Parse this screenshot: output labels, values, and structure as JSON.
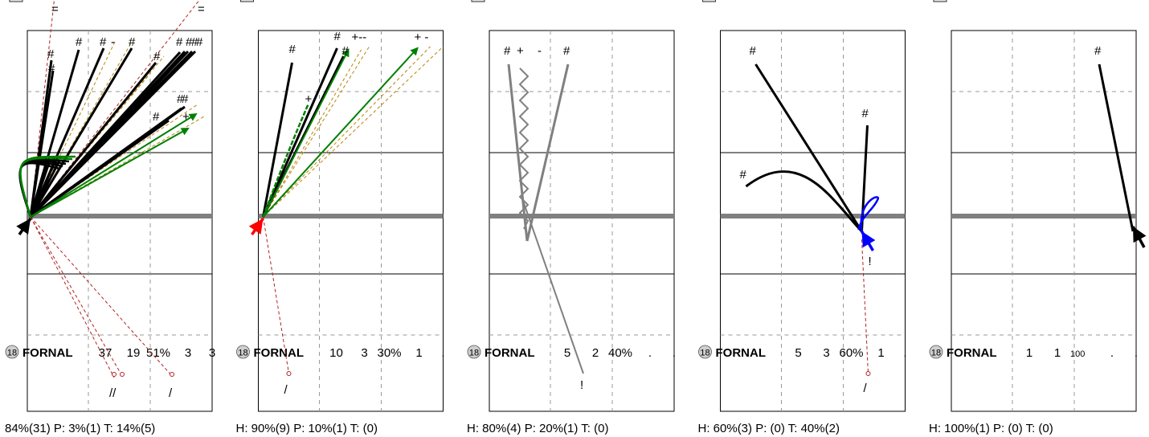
{
  "chart_data": [
    {
      "type": "other",
      "player": {
        "number": "18",
        "name": "FORNAL"
      },
      "stats": [
        "37",
        "19",
        "51%",
        "3",
        "3"
      ],
      "footer": "84%(31)  P: 3%(1)  T: 14%(5)",
      "colors": {
        "arrow": "#000000"
      }
    },
    {
      "type": "other",
      "player": {
        "number": "18",
        "name": "FORNAL"
      },
      "stats": [
        "10",
        "3",
        "30%",
        "1",
        "."
      ],
      "footer": "H: 90%(9)  P: 10%(1)  T: (0)",
      "colors": {
        "arrow": "#ff0000"
      }
    },
    {
      "type": "other",
      "player": {
        "number": "18",
        "name": "FORNAL"
      },
      "stats": [
        "5",
        "2",
        "40%",
        ".",
        "."
      ],
      "footer": "H: 80%(4)  P: 20%(1)  T: (0)",
      "colors": {
        "arrow": "none"
      }
    },
    {
      "type": "other",
      "player": {
        "number": "18",
        "name": "FORNAL"
      },
      "stats": [
        "5",
        "3",
        "60%",
        "1",
        "."
      ],
      "footer": "H: 60%(3)  P: (0)  T: 40%(2)",
      "colors": {
        "arrow": "#0000ff"
      }
    },
    {
      "type": "other",
      "player": {
        "number": "18",
        "name": "FORNAL"
      },
      "stats": [
        "1",
        "1",
        "100",
        ".",
        "."
      ],
      "footer": "H: 100%(1)  P: (0)  T: (0)",
      "colors": {
        "arrow": "#000000"
      }
    }
  ],
  "colors": {
    "court_line": "#000000",
    "net": "#808080",
    "grid_dash": "#999999",
    "success": "#000000",
    "positive": "#008000",
    "neutral_dash": "#b8860b",
    "error": "#b22222",
    "gray": "#808080",
    "block": "#0000ff"
  }
}
